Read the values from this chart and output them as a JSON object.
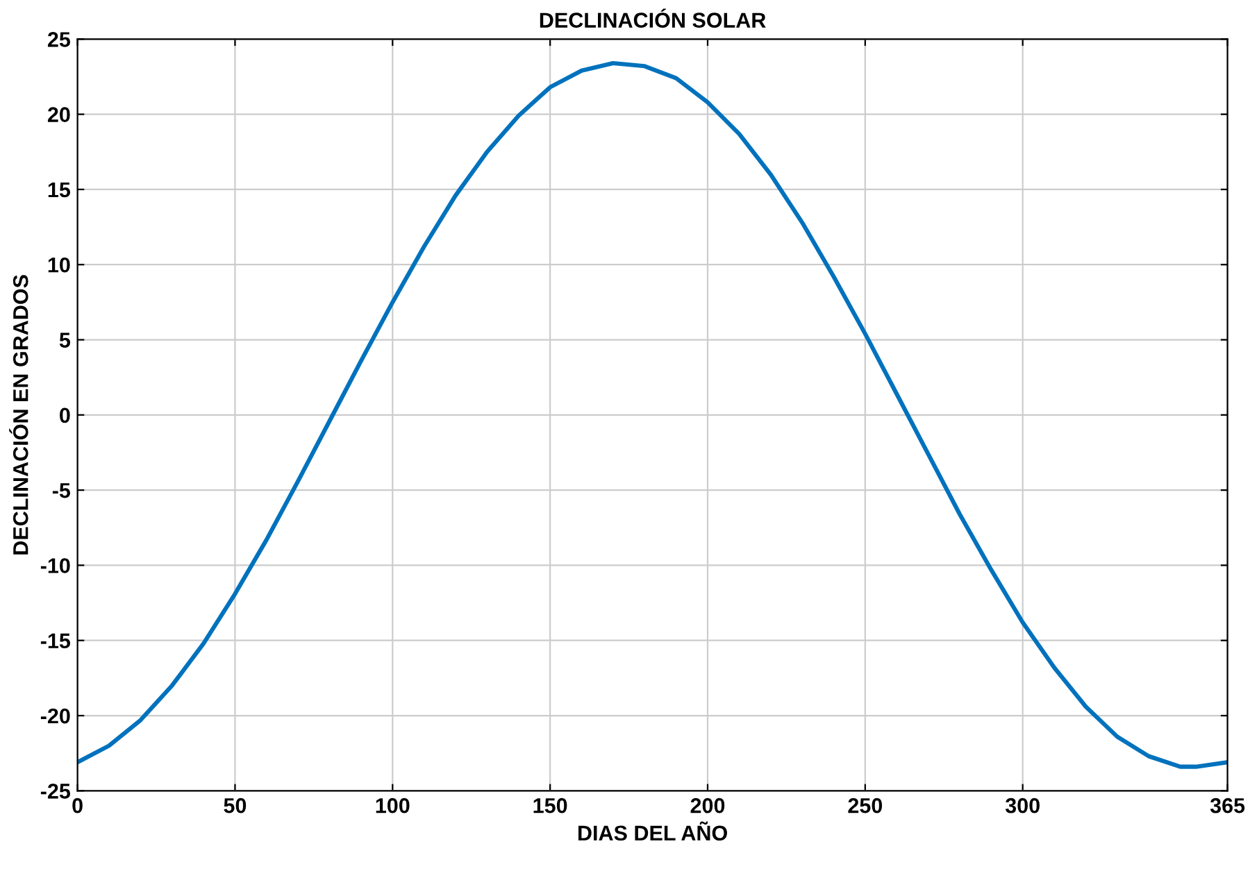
{
  "chart_data": {
    "type": "line",
    "title": "DECLINACIÓN SOLAR",
    "xlabel": "DIAS DEL AÑO",
    "ylabel": "DECLINACIÓN EN GRADOS",
    "series": [
      {
        "color": "#0072bd",
        "x": [
          0,
          10,
          20,
          30,
          40,
          50,
          60,
          70,
          80,
          90,
          100,
          110,
          120,
          130,
          140,
          150,
          160,
          170,
          180,
          190,
          200,
          210,
          220,
          230,
          240,
          250,
          260,
          270,
          280,
          290,
          300,
          310,
          320,
          330,
          340,
          350,
          355,
          365
        ],
        "values": [
          -23.1,
          -22.0,
          -20.3,
          -18.0,
          -15.2,
          -11.9,
          -8.3,
          -4.4,
          -0.4,
          3.6,
          7.5,
          11.2,
          14.6,
          17.5,
          19.9,
          21.8,
          22.9,
          23.4,
          23.2,
          22.4,
          20.8,
          18.7,
          16.0,
          12.8,
          9.2,
          5.4,
          1.4,
          -2.6,
          -6.6,
          -10.3,
          -13.8,
          -16.8,
          -19.4,
          -21.4,
          -22.7,
          -23.4,
          -23.4,
          -23.1
        ]
      }
    ],
    "xlim": [
      0,
      365
    ],
    "ylim": [
      -25,
      25
    ],
    "xticks": [
      0,
      50,
      100,
      150,
      200,
      250,
      300,
      365
    ],
    "yticks": [
      -25,
      -20,
      -15,
      -10,
      -5,
      0,
      5,
      10,
      15,
      20,
      25
    ],
    "grid": true,
    "legend": false
  }
}
